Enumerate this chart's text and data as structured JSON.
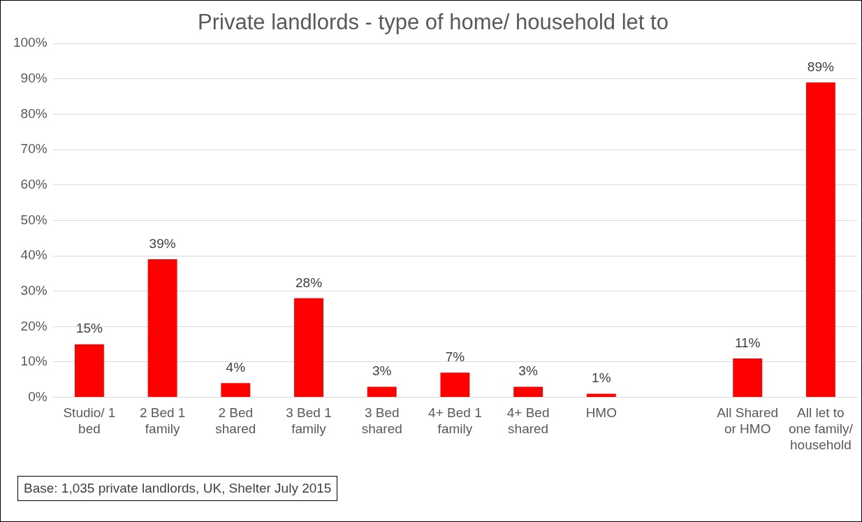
{
  "chart_data": {
    "type": "bar",
    "title": "Private landlords - type of home/ household let to",
    "categories": [
      "Studio/ 1 bed",
      "2 Bed 1 family",
      "2 Bed shared",
      "3 Bed 1 family",
      "3 Bed shared",
      "4+ Bed 1 family",
      "4+ Bed shared",
      "HMO",
      null,
      "All Shared or HMO",
      "All let to one family/ household"
    ],
    "values": [
      15,
      39,
      4,
      28,
      3,
      7,
      3,
      1,
      null,
      11,
      89
    ],
    "value_labels": [
      "15%",
      "39%",
      "4%",
      "28%",
      "3%",
      "7%",
      "3%",
      "1%",
      null,
      "11%",
      "89%"
    ],
    "color": "#ff0000",
    "ylim": [
      0,
      100
    ],
    "yticks": [
      {
        "value": 0,
        "label": "0%"
      },
      {
        "value": 10,
        "label": "10%"
      },
      {
        "value": 20,
        "label": "20%"
      },
      {
        "value": 30,
        "label": "30%"
      },
      {
        "value": 40,
        "label": "40%"
      },
      {
        "value": 50,
        "label": "50%"
      },
      {
        "value": 60,
        "label": "60%"
      },
      {
        "value": 70,
        "label": "70%"
      },
      {
        "value": 80,
        "label": "80%"
      },
      {
        "value": 90,
        "label": "90%"
      },
      {
        "value": 100,
        "label": "100%"
      }
    ],
    "grid": "y",
    "annotations": [
      "Base: 1,035 private landlords, UK, Shelter July 2015"
    ]
  }
}
